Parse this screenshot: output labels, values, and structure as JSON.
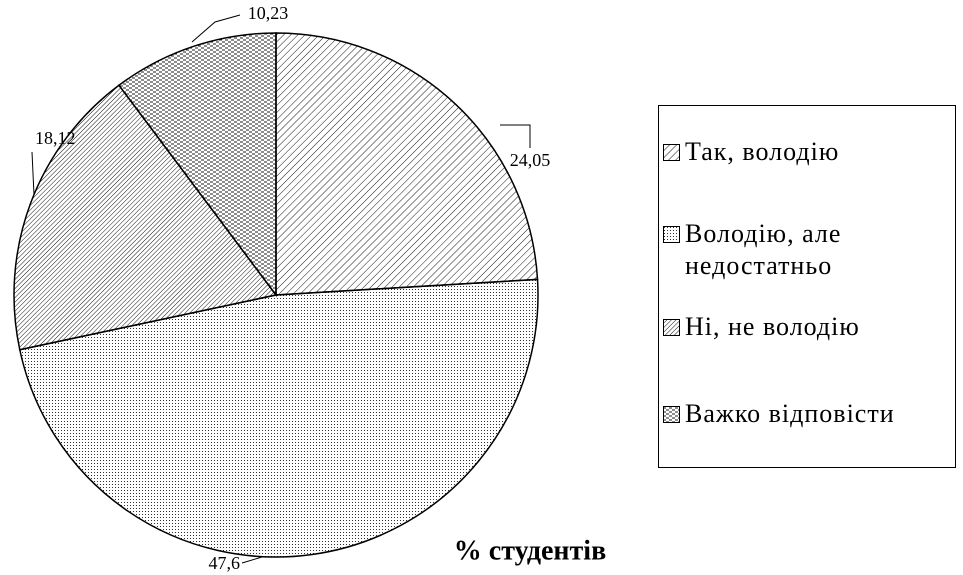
{
  "chart_data": {
    "type": "pie",
    "title": "% студентів",
    "categories": [
      "Так, володію",
      "Володію, але недостатньо",
      "Ні, не володію",
      "Важко відповісти"
    ],
    "values": [
      24.05,
      47.6,
      18.12,
      10.23
    ],
    "value_labels": [
      "24,05",
      "47,6",
      "18,12",
      "10,23"
    ],
    "patterns": [
      "diagonal",
      "dots",
      "dense-diagonal",
      "dashes"
    ],
    "legend": "right"
  }
}
